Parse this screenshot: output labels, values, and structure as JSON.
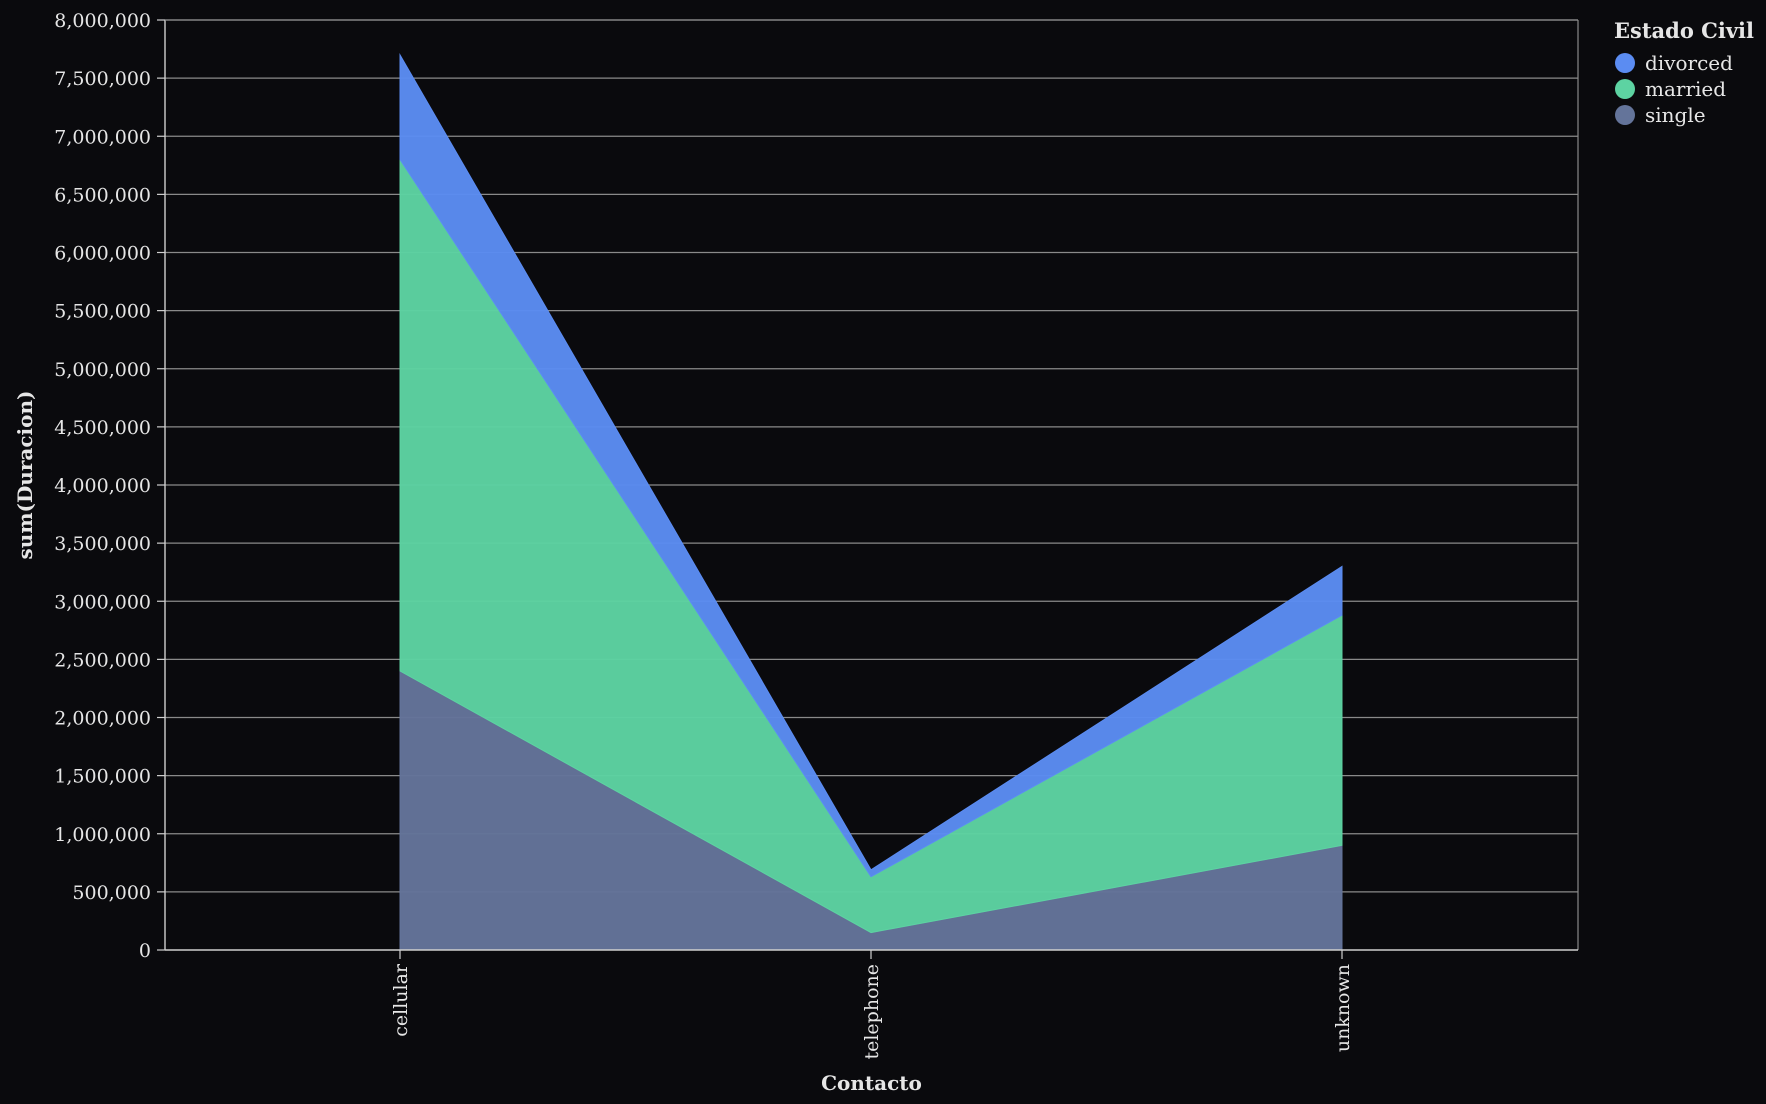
{
  "chart_data": {
    "type": "area",
    "stacked": true,
    "categories": [
      "cellular",
      "telephone",
      "unknown"
    ],
    "series": [
      {
        "name": "single",
        "values": [
          2400000,
          150000,
          900000
        ],
        "color": "#64749a"
      },
      {
        "name": "married",
        "values": [
          4400000,
          480000,
          1980000
        ],
        "color": "#5dd3a2"
      },
      {
        "name": "divorced",
        "values": [
          900000,
          60000,
          420000
        ],
        "color": "#5b8cf2"
      }
    ],
    "xlabel": "Contacto",
    "ylabel": "sum(Duracion)",
    "ylim": [
      0,
      8000000
    ],
    "yticks": [
      0,
      500000,
      1000000,
      1500000,
      2000000,
      2500000,
      3000000,
      3500000,
      4000000,
      4500000,
      5000000,
      5500000,
      6000000,
      6500000,
      7000000,
      7500000,
      8000000
    ],
    "ytick_labels": [
      "0",
      "500,000",
      "1,000,000",
      "1,500,000",
      "2,000,000",
      "2,500,000",
      "3,000,000",
      "3,500,000",
      "4,000,000",
      "4,500,000",
      "5,000,000",
      "5,500,000",
      "6,000,000",
      "6,500,000",
      "7,000,000",
      "7,500,000",
      "8,000,000"
    ],
    "grid": true,
    "legend": {
      "title": "Estado Civil",
      "position": "top-right",
      "entries": [
        {
          "name": "divorced",
          "color": "#5b8cf2"
        },
        {
          "name": "married",
          "color": "#5dd3a2"
        },
        {
          "name": "single",
          "color": "#64749a"
        }
      ]
    },
    "colors": {
      "background": "#0a0a0d",
      "grid": "#8a8a8a",
      "axis": "#cfcfcf",
      "text": "#e6e6e6"
    }
  }
}
